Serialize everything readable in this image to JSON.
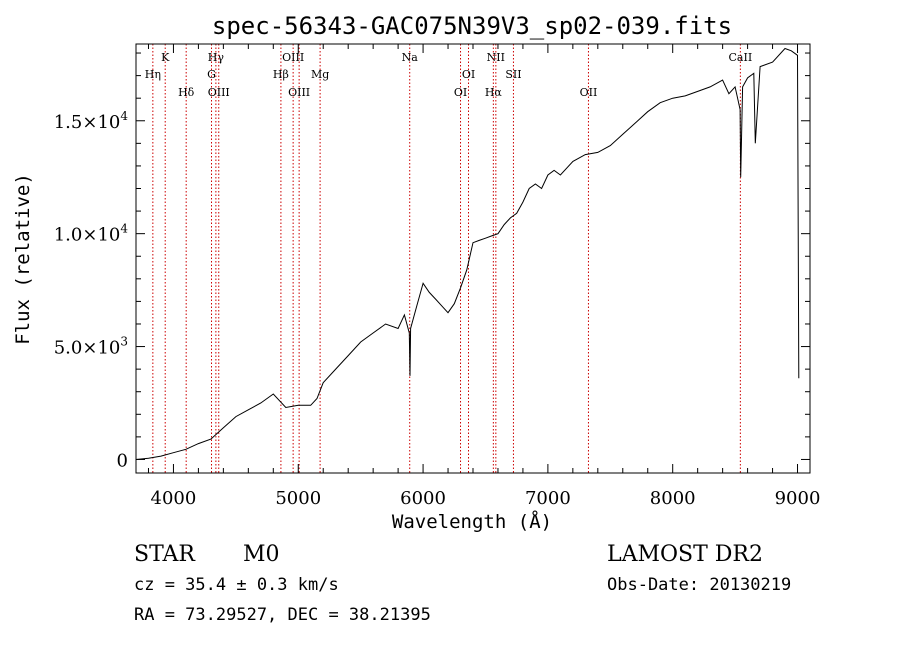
{
  "chart_data": {
    "type": "line",
    "title": "spec-56343-GAC075N39V3_sp02-039.fits",
    "xlabel": "Wavelength (Å)",
    "ylabel": "Flux (relative)",
    "xlim": [
      3700,
      9100
    ],
    "ylim": [
      -600,
      18400
    ],
    "x_ticks": [
      {
        "v": 4000,
        "label": "4000"
      },
      {
        "v": 5000,
        "label": "5000"
      },
      {
        "v": 6000,
        "label": "6000"
      },
      {
        "v": 7000,
        "label": "7000"
      },
      {
        "v": 8000,
        "label": "8000"
      },
      {
        "v": 9000,
        "label": "9000"
      }
    ],
    "y_ticks": [
      {
        "v": 0,
        "m": "0",
        "e": ""
      },
      {
        "v": 5000,
        "m": "5.0×10",
        "e": "3"
      },
      {
        "v": 10000,
        "m": "1.0×10",
        "e": "4"
      },
      {
        "v": 15000,
        "m": "1.5×10",
        "e": "4"
      }
    ],
    "x": [
      3700,
      3800,
      3900,
      4000,
      4100,
      4200,
      4300,
      4400,
      4500,
      4600,
      4700,
      4800,
      4900,
      5000,
      5100,
      5150,
      5200,
      5300,
      5400,
      5500,
      5600,
      5700,
      5800,
      5850,
      5890,
      5895,
      5900,
      5950,
      6000,
      6050,
      6100,
      6150,
      6200,
      6250,
      6300,
      6350,
      6400,
      6450,
      6500,
      6550,
      6600,
      6650,
      6700,
      6750,
      6800,
      6850,
      6900,
      6950,
      7000,
      7050,
      7100,
      7200,
      7300,
      7400,
      7500,
      7600,
      7700,
      7800,
      7900,
      8000,
      8100,
      8200,
      8300,
      8400,
      8450,
      8500,
      8540,
      8545,
      8560,
      8600,
      8650,
      8662,
      8700,
      8800,
      8900,
      8950,
      9000,
      9010
    ],
    "y": [
      0,
      50,
      150,
      300,
      450,
      700,
      900,
      1400,
      1900,
      2200,
      2500,
      2900,
      2300,
      2400,
      2400,
      2700,
      3400,
      4000,
      4600,
      5200,
      5600,
      6000,
      5800,
      6400,
      5600,
      3700,
      5800,
      6800,
      7800,
      7400,
      7100,
      6800,
      6500,
      6900,
      7600,
      8400,
      9600,
      9700,
      9800,
      9900,
      10000,
      10400,
      10700,
      10900,
      11400,
      12000,
      12200,
      12000,
      12600,
      12800,
      12600,
      13200,
      13500,
      13600,
      13900,
      14400,
      14900,
      15400,
      15800,
      16000,
      16100,
      16300,
      16500,
      16800,
      16200,
      16500,
      15500,
      12500,
      16500,
      16900,
      17100,
      14000,
      17400,
      17600,
      18200,
      18100,
      17900,
      3600
    ],
    "lines": [
      {
        "name": "Hη",
        "w": 3835,
        "tier": 1
      },
      {
        "name": "K",
        "w": 3934,
        "tier": 0
      },
      {
        "name": "Hδ",
        "w": 4102,
        "tier": 2
      },
      {
        "name": "Hγ",
        "w": 4340,
        "tier": 0
      },
      {
        "name": "G",
        "w": 4305,
        "tier": 1
      },
      {
        "name": "OIII",
        "w": 4363,
        "tier": 2
      },
      {
        "name": "OIII",
        "w": 4959,
        "tier": 0
      },
      {
        "name": "Hβ",
        "w": 4861,
        "tier": 1
      },
      {
        "name": "OIII",
        "w": 5007,
        "tier": 2
      },
      {
        "name": "Mg",
        "w": 5175,
        "tier": 1
      },
      {
        "name": "Na",
        "w": 5893,
        "tier": 0
      },
      {
        "name": "OI",
        "w": 6364,
        "tier": 1
      },
      {
        "name": "OI",
        "w": 6300,
        "tier": 2
      },
      {
        "name": "NII",
        "w": 6583,
        "tier": 0
      },
      {
        "name": "Hα",
        "w": 6563,
        "tier": 2
      },
      {
        "name": "SII",
        "w": 6724,
        "tier": 1
      },
      {
        "name": "OII",
        "w": 7325,
        "tier": 2
      },
      {
        "name": "CaII",
        "w": 8542,
        "tier": 0
      }
    ]
  },
  "info": {
    "type_label": "STAR",
    "subclass": "M0",
    "cz": "cz = 35.4 ± 0.3 km/s",
    "radec": "RA =  73.29527, DEC =  38.21395",
    "survey": "LAMOST DR2",
    "obsdate": "Obs-Date: 20130219"
  }
}
